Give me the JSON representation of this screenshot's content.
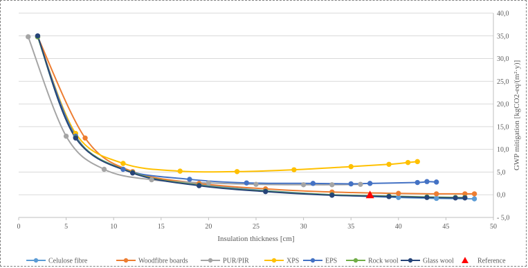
{
  "chart_data": {
    "type": "line",
    "title": "",
    "xlabel": "Insulation thickness [cm]",
    "ylabel": "GWP mitigation [kgCO2-eq/(m²·y)]",
    "xlim": [
      0,
      50
    ],
    "ylim": [
      -5,
      40
    ],
    "x_ticks": [
      "0",
      "5",
      "10",
      "15",
      "20",
      "25",
      "30",
      "35",
      "40",
      "45",
      "50"
    ],
    "y_ticks": [
      "- 5,0",
      "0,0",
      "5,0",
      "10,0",
      "15,0",
      "20,0",
      "25,0",
      "30,0",
      "35,0",
      "40,0"
    ],
    "grid": "horizontal",
    "legend_position": "bottom",
    "series": [
      {
        "name": "Celulose fibre",
        "color": "#5b9bd5",
        "marker": "circle",
        "points": [
          [
            2,
            34.8
          ],
          [
            6,
            12.6
          ],
          [
            12,
            5.0
          ],
          [
            19,
            2.3
          ],
          [
            26,
            0.9
          ],
          [
            33,
            0.0
          ],
          [
            40,
            -0.6
          ],
          [
            44,
            -0.8
          ],
          [
            48,
            -0.9
          ]
        ]
      },
      {
        "name": "Woodfibre boards",
        "color": "#ed7d31",
        "marker": "circle",
        "points": [
          [
            2,
            34.8
          ],
          [
            7,
            12.5
          ],
          [
            12,
            5.1
          ],
          [
            19,
            2.5
          ],
          [
            26,
            1.3
          ],
          [
            33,
            0.6
          ],
          [
            40,
            0.3
          ],
          [
            44,
            0.2
          ],
          [
            47,
            0.2
          ],
          [
            48,
            0.2
          ]
        ]
      },
      {
        "name": "PUR/PIR",
        "color": "#a5a5a5",
        "marker": "circle",
        "points": [
          [
            1,
            34.8
          ],
          [
            5,
            12.9
          ],
          [
            9,
            5.6
          ],
          [
            14,
            3.3
          ],
          [
            20,
            2.6
          ],
          [
            25,
            2.3
          ],
          [
            30,
            2.2
          ],
          [
            33,
            2.2
          ],
          [
            36,
            2.3
          ]
        ]
      },
      {
        "name": "XPS",
        "color": "#ffc000",
        "marker": "circle",
        "points": [
          [
            2,
            34.8
          ],
          [
            6,
            13.5
          ],
          [
            11,
            6.9
          ],
          [
            17,
            5.2
          ],
          [
            23,
            5.1
          ],
          [
            29,
            5.5
          ],
          [
            35,
            6.2
          ],
          [
            39,
            6.7
          ],
          [
            41,
            7.1
          ],
          [
            42,
            7.3
          ]
        ]
      },
      {
        "name": "EPS",
        "color": "#4472c4",
        "marker": "circle",
        "points": [
          [
            2,
            34.8
          ],
          [
            6,
            12.9
          ],
          [
            11,
            5.6
          ],
          [
            18,
            3.4
          ],
          [
            24,
            2.6
          ],
          [
            31,
            2.5
          ],
          [
            35,
            2.4
          ],
          [
            37,
            2.5
          ],
          [
            42,
            2.7
          ],
          [
            43,
            2.9
          ],
          [
            44,
            2.8
          ]
        ]
      },
      {
        "name": "Rock wool",
        "color": "#70ad47",
        "marker": "circle",
        "points": [
          [
            2,
            34.8
          ],
          [
            6,
            12.6
          ],
          [
            12,
            4.9
          ],
          [
            19,
            2.1
          ],
          [
            26,
            0.8
          ],
          [
            33,
            0.0
          ],
          [
            39,
            -0.3
          ],
          [
            43,
            -0.5
          ],
          [
            46,
            -0.6
          ],
          [
            47,
            -0.6
          ]
        ]
      },
      {
        "name": "Glass wool",
        "color": "#264478",
        "marker": "circle",
        "points": [
          [
            2,
            35.0
          ],
          [
            6,
            12.5
          ],
          [
            12,
            4.8
          ],
          [
            19,
            2.0
          ],
          [
            26,
            0.7
          ],
          [
            33,
            -0.1
          ],
          [
            39,
            -0.4
          ],
          [
            43,
            -0.6
          ],
          [
            46,
            -0.7
          ],
          [
            47,
            -0.7
          ]
        ]
      },
      {
        "name": "Reference",
        "color": "#ff0000",
        "marker": "triangle",
        "points": [
          [
            37,
            0.0
          ]
        ]
      }
    ]
  }
}
